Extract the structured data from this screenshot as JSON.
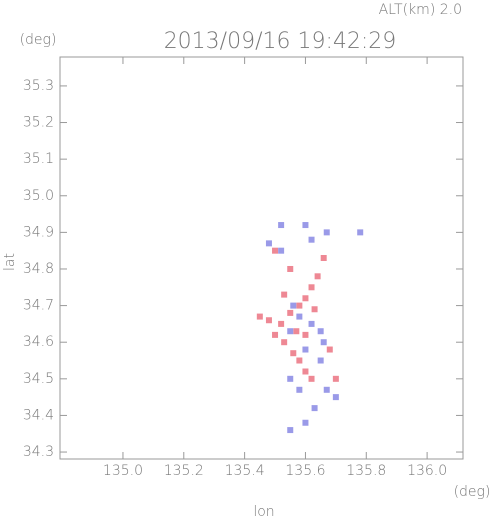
{
  "chart_data": {
    "type": "scatter",
    "title": "2013/09/16 19:42:29",
    "subtitle": "ALT(km) 2.0",
    "y_unit": "(deg)",
    "x_unit": "(deg)",
    "x_label": "lon",
    "y_label": "lat",
    "xlim": [
      134.793,
      136.118
    ],
    "ylim": [
      34.281,
      35.379
    ],
    "xticks": [
      {
        "value": 135,
        "label": "135.0"
      },
      135.2,
      135.4,
      135.6,
      135.8,
      {
        "value": 136,
        "label": "136.0"
      }
    ],
    "yticks": [
      34.3,
      34.4,
      34.5,
      34.6,
      34.7,
      34.8,
      34.9,
      {
        "value": 35,
        "label": "35.0"
      },
      35.1,
      35.2,
      35.3
    ],
    "series": [
      {
        "color": "#e86070",
        "x": [
          135.52,
          135.55,
          135.58,
          135.6,
          135.62,
          135.64,
          135.5,
          135.53,
          135.56,
          135.58,
          135.6,
          135.62,
          135.48,
          135.45,
          135.5,
          135.55,
          135.66,
          135.7,
          135.68,
          135.6,
          135.57,
          135.63,
          135.53
        ],
        "y": [
          34.65,
          34.68,
          34.7,
          34.72,
          34.75,
          34.78,
          34.62,
          34.6,
          34.57,
          34.55,
          34.52,
          34.5,
          34.66,
          34.67,
          34.85,
          34.8,
          34.83,
          34.5,
          34.58,
          34.62,
          34.63,
          34.69,
          34.73
        ]
      },
      {
        "color": "#7878e0",
        "x": [
          135.48,
          135.52,
          135.6,
          135.62,
          135.67,
          135.78,
          135.58,
          135.62,
          135.65,
          135.55,
          135.6,
          135.65,
          135.58,
          135.55,
          135.67,
          135.63,
          135.6,
          135.55,
          135.7,
          135.52,
          135.66,
          135.56
        ],
        "y": [
          34.87,
          34.85,
          34.92,
          34.88,
          34.9,
          34.9,
          34.67,
          34.65,
          34.63,
          34.63,
          34.58,
          34.55,
          34.47,
          34.5,
          34.47,
          34.42,
          34.38,
          34.36,
          34.45,
          34.92,
          34.6,
          34.7
        ]
      }
    ]
  }
}
